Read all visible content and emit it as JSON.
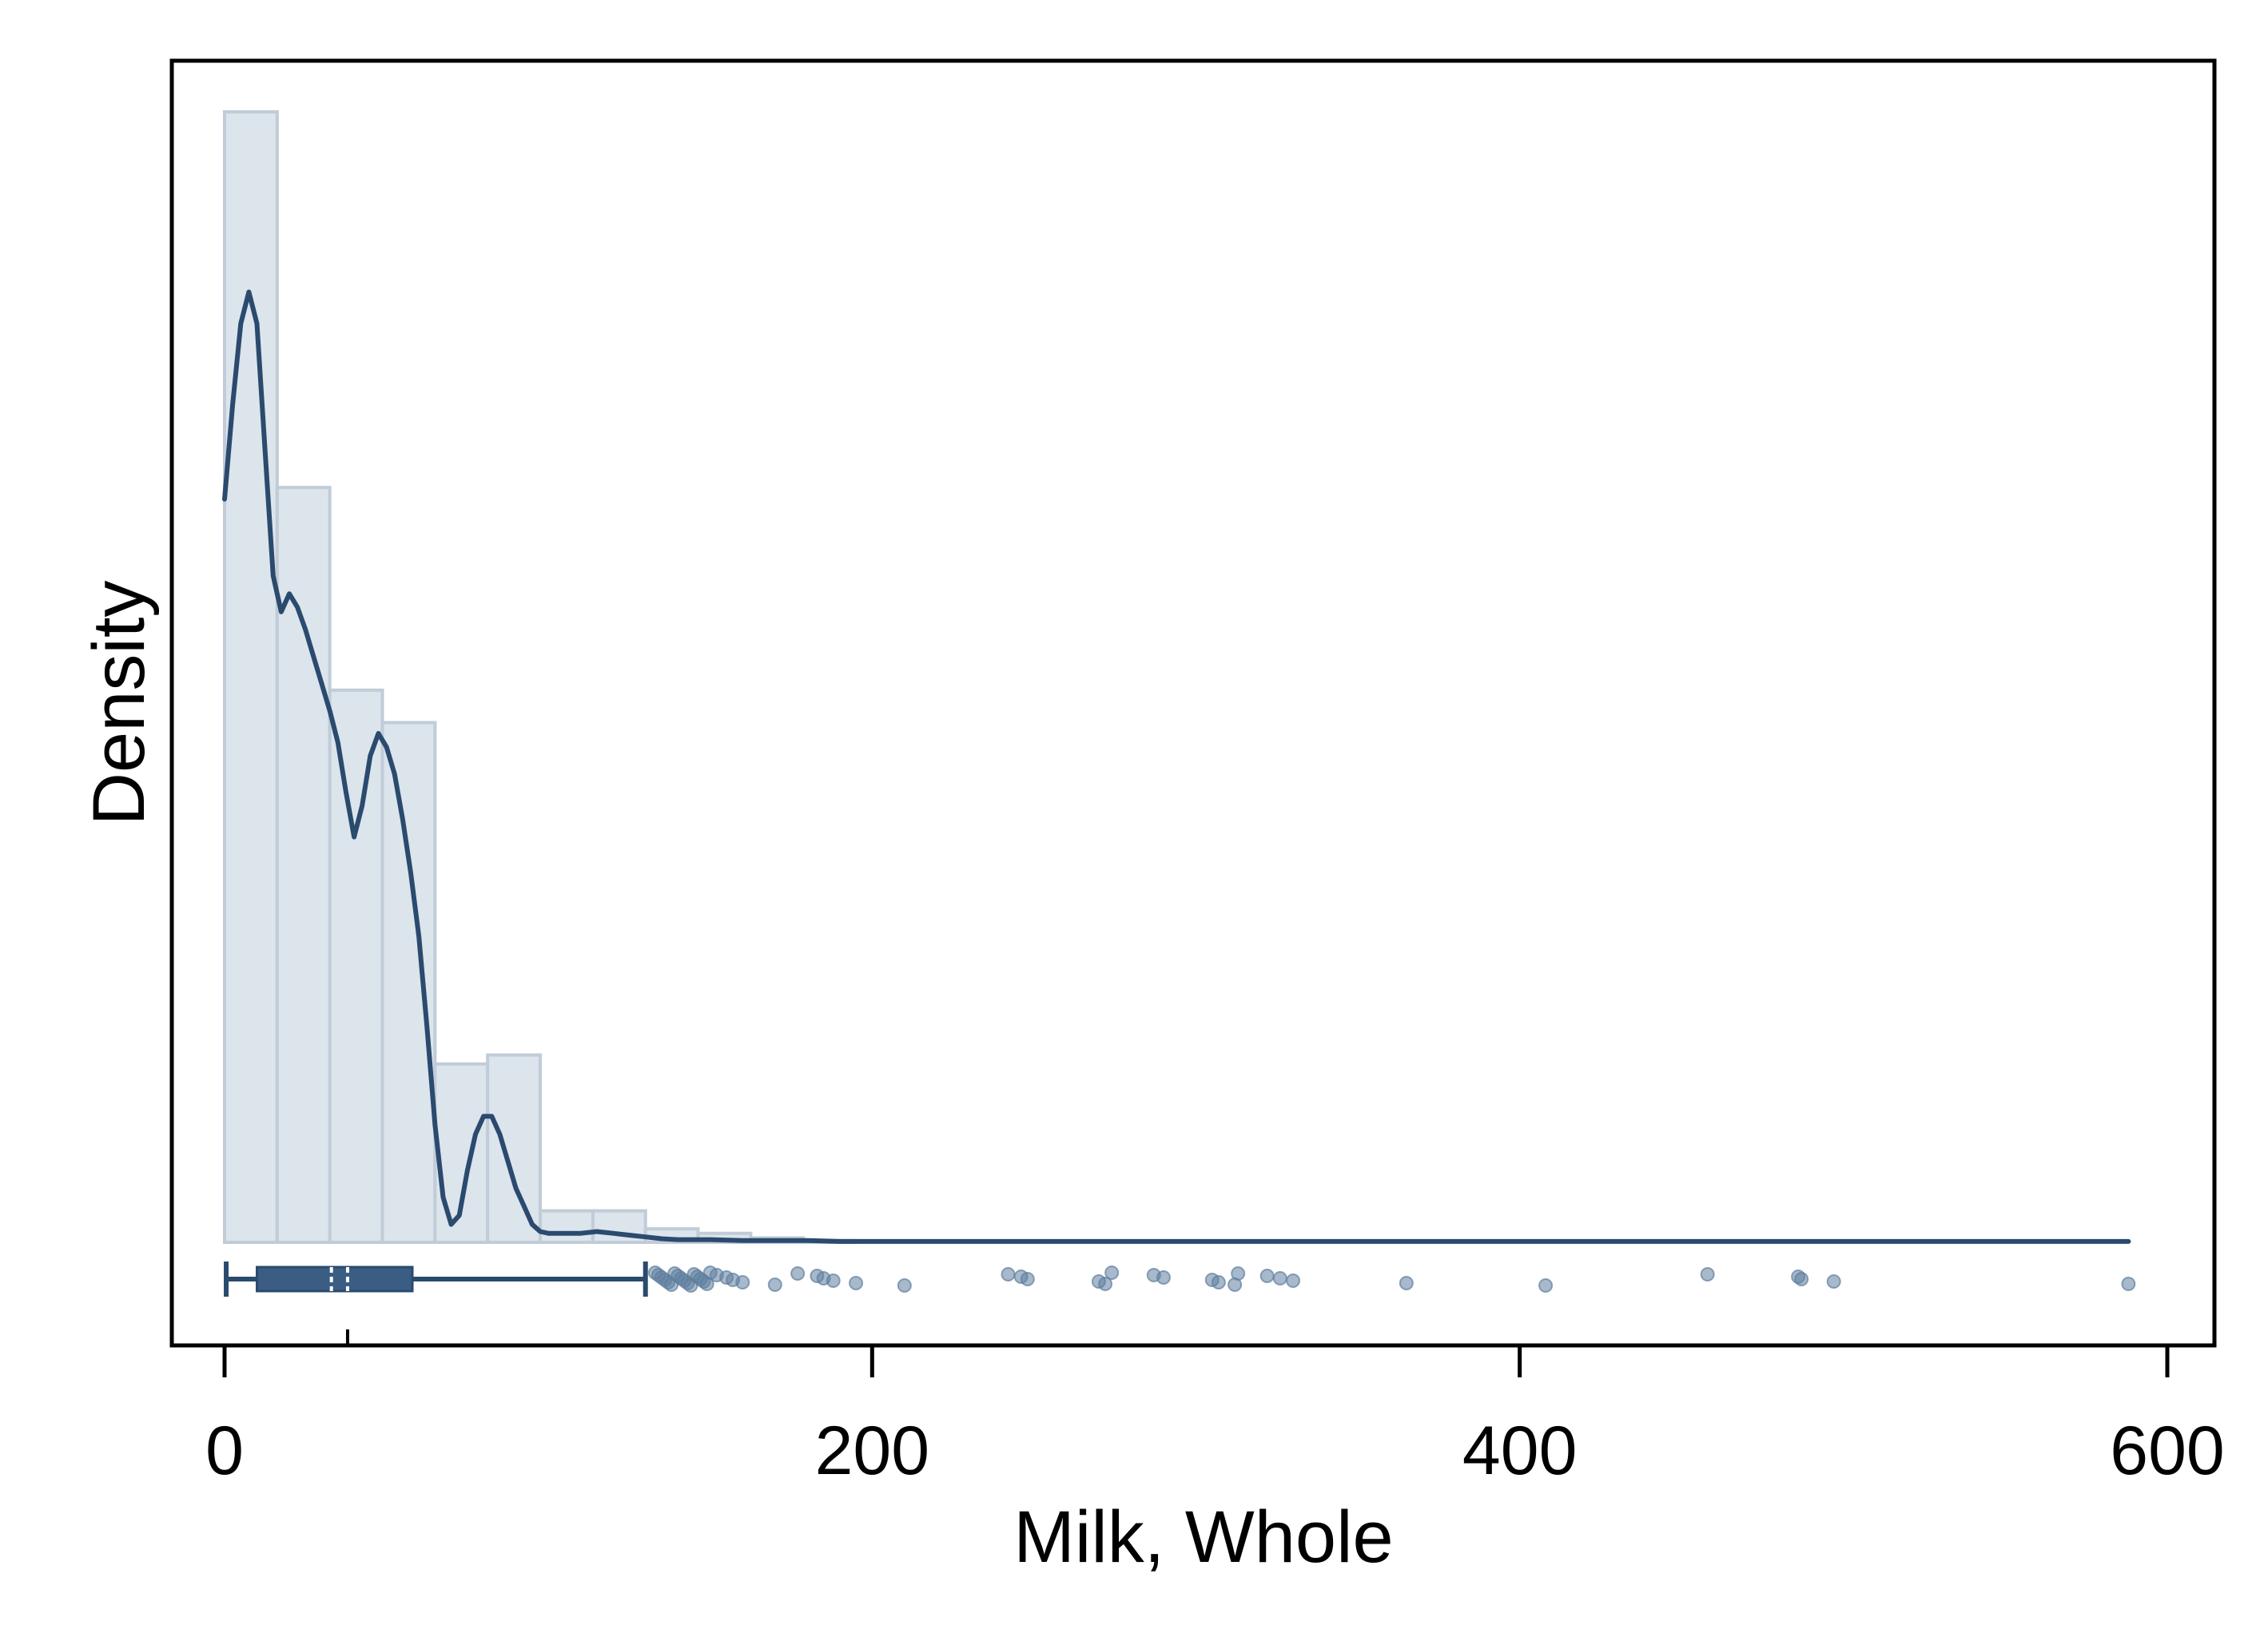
{
  "chart_data": {
    "type": "histogram",
    "title": "",
    "xlabel": "Milk, Whole",
    "ylabel": "Density",
    "xlim": [
      -8,
      616
    ],
    "x_ticks": [
      0,
      200,
      400,
      600
    ],
    "x_tick_labels": [
      "0",
      "200",
      "400",
      "600"
    ],
    "y_ticks_shown": false,
    "grid": false,
    "legend": "none",
    "colors": {
      "bar_fill": "#dce4ec",
      "bar_stroke": "#c0ccd8",
      "line": "#2a4a6e",
      "box": "#3b5d83",
      "points": "#5f7f9f"
    },
    "histogram": {
      "bin_width": 16.25,
      "bin_start": 0,
      "densities": [
        0.01255,
        0.00838,
        0.00613,
        0.00577,
        0.00198,
        0.00208,
        0.00035,
        0.00035,
        0.00015,
        0.0001,
        5e-05,
        2e-05
      ]
    },
    "density_curve": {
      "x": [
        0,
        2.5,
        5,
        7.5,
        10,
        12.5,
        15,
        17.5,
        20,
        22.5,
        25,
        27.5,
        30,
        32.5,
        35,
        37.5,
        40,
        42.5,
        45,
        47.5,
        50,
        52.5,
        55,
        57.5,
        60,
        62.5,
        65,
        67.5,
        70,
        72.5,
        75,
        77.5,
        80,
        82.5,
        85,
        87.5,
        90,
        92.5,
        95,
        97.5,
        100,
        105,
        110,
        115,
        120,
        125,
        130,
        135,
        140,
        150,
        160,
        170,
        180,
        190,
        200,
        225,
        250,
        275,
        300,
        325,
        350,
        400,
        450,
        500,
        550,
        588
      ],
      "y": [
        0.00825,
        0.0093,
        0.0102,
        0.01055,
        0.0102,
        0.0088,
        0.0074,
        0.007,
        0.0072,
        0.00705,
        0.0068,
        0.0065,
        0.0062,
        0.0059,
        0.00555,
        0.005,
        0.0045,
        0.00485,
        0.0054,
        0.00565,
        0.0055,
        0.0052,
        0.0047,
        0.0041,
        0.0034,
        0.0024,
        0.0013,
        0.0005,
        0.0002,
        0.0003,
        0.0008,
        0.0012,
        0.0014,
        0.0014,
        0.0012,
        0.0009,
        0.0006,
        0.0004,
        0.0002,
        0.00012,
        0.0001,
        0.0001,
        0.0001,
        0.00012,
        0.0001,
        8e-05,
        6e-05,
        4e-05,
        3e-05,
        3e-05,
        2e-05,
        2e-05,
        2e-05,
        1e-05,
        1e-05,
        1e-05,
        1e-05,
        1e-05,
        1e-05,
        1e-05,
        1e-05,
        1e-05,
        1e-05,
        1e-05,
        1e-05,
        1e-05
      ]
    },
    "boxplot": {
      "whisker_low": 0.5,
      "q1": 10,
      "median": 33,
      "mean": 38,
      "q3": 58,
      "whisker_high": 130
    },
    "outliers": [
      133,
      134,
      135,
      136,
      137,
      138,
      139,
      140,
      141,
      142,
      143,
      144,
      145,
      146,
      147,
      148,
      149,
      150,
      152,
      155,
      157,
      160,
      170,
      177,
      183,
      185,
      188,
      195,
      210,
      242,
      246,
      248,
      270,
      272,
      274,
      287,
      290,
      305,
      307,
      312,
      313,
      322,
      326,
      330,
      365,
      408,
      458,
      486,
      487,
      497,
      588
    ]
  }
}
